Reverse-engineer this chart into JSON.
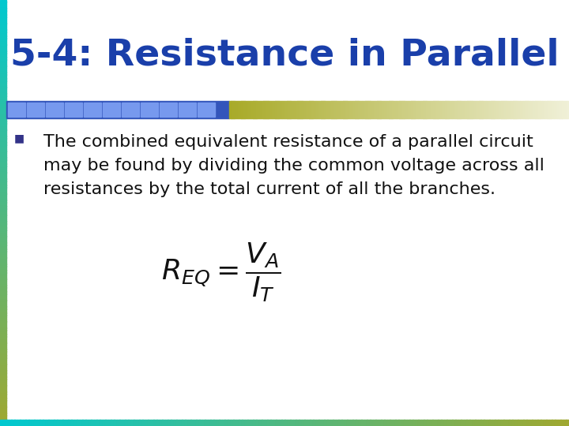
{
  "title": "5-4: Resistance in Parallel",
  "title_color": "#1a3faa",
  "title_fontsize": 34,
  "bullet_text_line1": "The combined equivalent resistance of a parallel circuit",
  "bullet_text_line2": "may be found by dividing the common voltage across all",
  "bullet_text_line3": "resistances by the total current of all the branches.",
  "bullet_fontsize": 16,
  "formula": "$R_{EQ} = \\dfrac{V_A}{I_T}$",
  "formula_fontsize": 26,
  "bg_color": "#ffffff",
  "border_teal": "#00c8d0",
  "border_olive": "#a0a830",
  "bar_blue_dark": "#3355bb",
  "bar_blue_light": "#7799ee",
  "bullet_color": "#222288"
}
